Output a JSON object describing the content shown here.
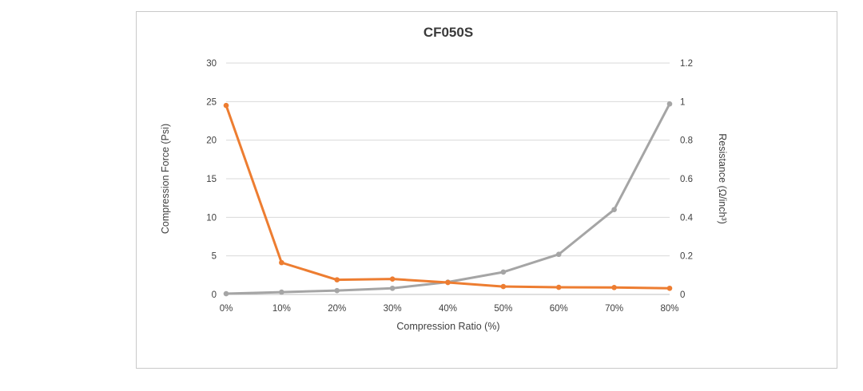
{
  "chart": {
    "colors": {
      "force": "#a5a5a5",
      "resistance": "#ed7d31",
      "grid": "#d9d9d9",
      "axis": "#bfbfbf",
      "text": "#3f3f3f",
      "border": "#c9c9c9"
    }
  },
  "chart_data": {
    "type": "line",
    "title": "CF050S",
    "xlabel": "Compression Ratio (%)",
    "ylabel_left": "Compression Force (Psi)",
    "ylabel_right": "Resistance (Ω/inch³)",
    "categories": [
      "0%",
      "10%",
      "20%",
      "30%",
      "40%",
      "50%",
      "60%",
      "70%",
      "80%"
    ],
    "series": [
      {
        "name": "Compression Force (Psi)",
        "axis": "left",
        "color": "#a5a5a5",
        "values": [
          0.1,
          0.3,
          0.5,
          0.8,
          1.6,
          2.9,
          5.2,
          11.0,
          24.7
        ]
      },
      {
        "name": "Resistance (Ω/inch³)",
        "axis": "right",
        "color": "#ed7d31",
        "values": [
          0.98,
          0.165,
          0.076,
          0.08,
          0.062,
          0.041,
          0.037,
          0.036,
          0.032
        ]
      }
    ],
    "y_left_ticks": [
      0,
      5,
      10,
      15,
      20,
      25,
      30
    ],
    "y_right_ticks": [
      0,
      0.2,
      0.4,
      0.6,
      0.8,
      1,
      1.2
    ],
    "y_left_range": [
      0,
      30
    ],
    "y_right_range": [
      0,
      1.2
    ],
    "grid": true,
    "legend": "none"
  }
}
